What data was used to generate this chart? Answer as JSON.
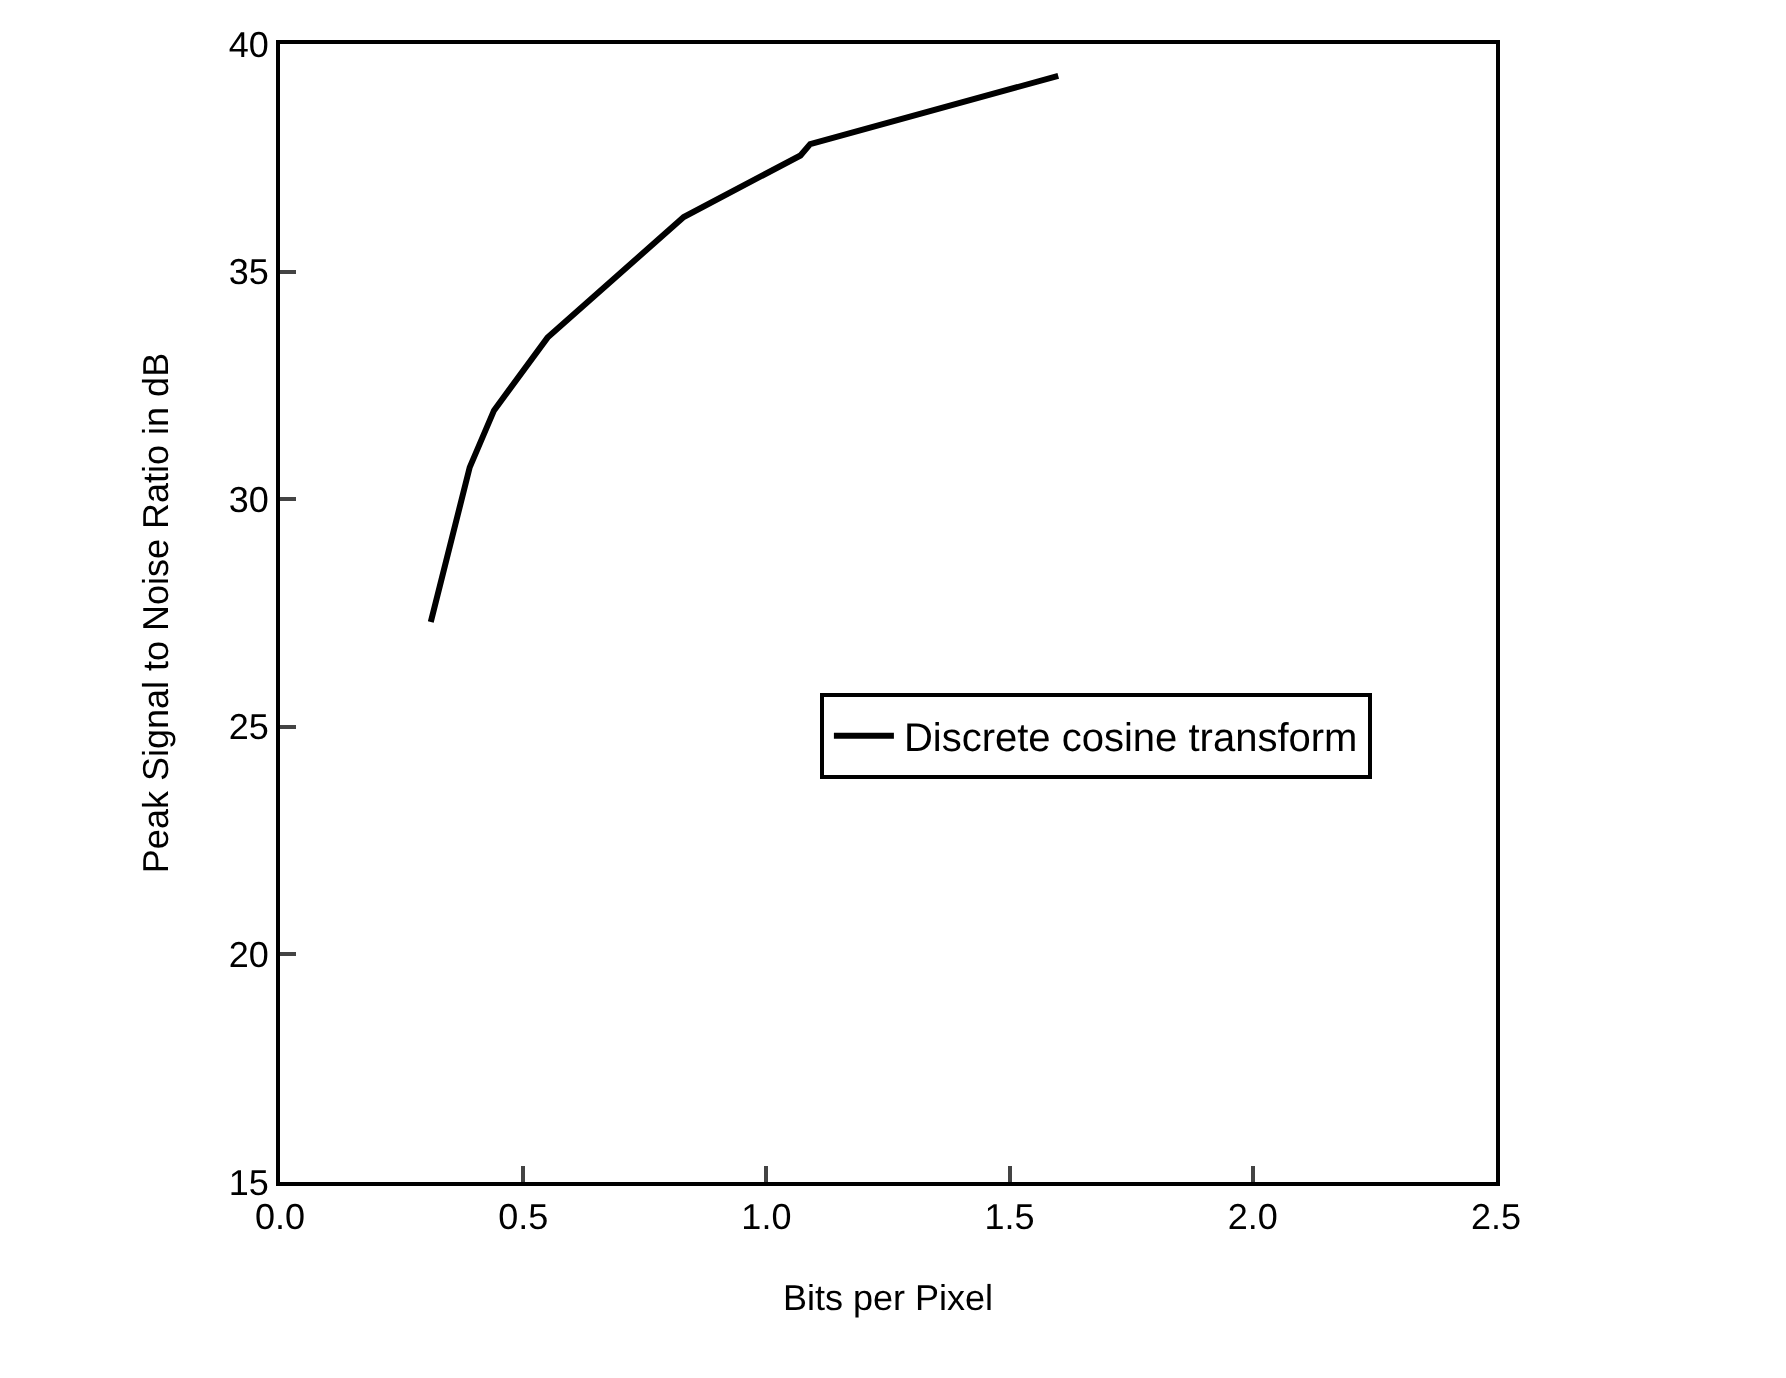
{
  "chart_data": {
    "type": "line",
    "xlabel": "Bits per Pixel",
    "ylabel": "Peak Signal to Noise Ratio in dB",
    "x": [
      0.31,
      0.39,
      0.44,
      0.55,
      0.83,
      1.07,
      1.09,
      1.6
    ],
    "series": [
      {
        "name": "Discrete cosine transform",
        "color": "#000000",
        "values": [
          27.3,
          30.7,
          31.95,
          33.55,
          36.2,
          37.55,
          37.8,
          39.3
        ]
      }
    ],
    "xlim": [
      0,
      2.5
    ],
    "xticks": [
      {
        "value": 0,
        "label": "0.0"
      },
      0.5,
      {
        "value": 1,
        "label": "1.0"
      },
      1.5,
      {
        "value": 2,
        "label": "2.0"
      },
      2.5
    ],
    "ylim": [
      15,
      40
    ],
    "yticks": [
      15,
      20,
      25,
      30,
      35,
      40
    ],
    "grid": false,
    "legend": "right",
    "marker": "none",
    "line_style": "solid"
  }
}
